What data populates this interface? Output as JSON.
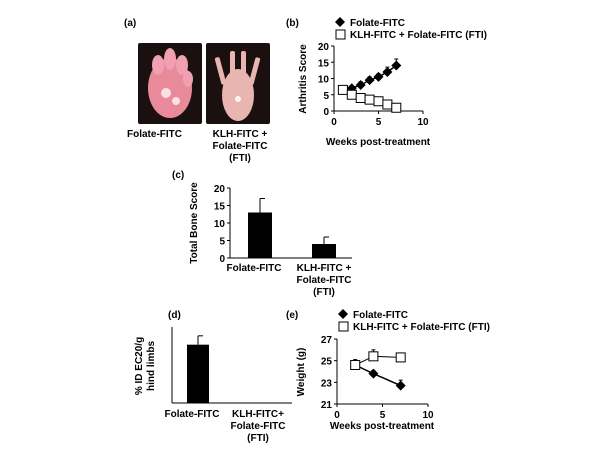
{
  "panels": {
    "a": {
      "label": "(a)",
      "photo_left_caption": "Folate-FITC",
      "photo_right_caption": [
        "KLH-FITC +",
        "Folate-FITC",
        "(FTI)"
      ]
    },
    "b": {
      "label": "(b)"
    },
    "c": {
      "label": "(c)"
    },
    "d": {
      "label": "(d)"
    },
    "e": {
      "label": "(e)"
    }
  },
  "colors": {
    "series_filled": "#000000",
    "series_open": "#ffffff",
    "paw_bg": "#1a1010",
    "paw_left": "#e88a9a",
    "paw_right": "#e8b5b0"
  },
  "chart_data": [
    {
      "id": "b",
      "type": "line",
      "xlabel": "Weeks post-treatment",
      "ylabel": "Arthritis Score",
      "xlim": [
        0,
        10
      ],
      "ylim": [
        0,
        20
      ],
      "xticks": [
        "0",
        "5",
        "10"
      ],
      "yticks": [
        "0",
        "5",
        "10",
        "15",
        "20"
      ],
      "legend": "top",
      "series": [
        {
          "name": "Folate-FITC",
          "marker": "diamond",
          "x": [
            1,
            2,
            3,
            4,
            5,
            6,
            7
          ],
          "y": [
            6.5,
            7,
            8,
            9.5,
            10.5,
            12,
            14
          ],
          "err": [
            1,
            0.5,
            1,
            1,
            1,
            1.5,
            2
          ]
        },
        {
          "name": "KLH-FITC + Folate-FITC (FTI)",
          "marker": "square",
          "x": [
            1,
            2,
            3,
            4,
            5,
            6,
            7
          ],
          "y": [
            6.5,
            5,
            4,
            3.5,
            3,
            2,
            1
          ],
          "err": [
            1,
            0.5,
            0.5,
            0.5,
            0.5,
            0.5,
            0.3
          ]
        }
      ]
    },
    {
      "id": "c",
      "type": "bar",
      "ylabel": "Total Bone Score",
      "ylim": [
        0,
        20
      ],
      "yticks": [
        "0",
        "5",
        "10",
        "15",
        "20"
      ],
      "categories": [
        "Folate-FITC",
        "KLH-FITC +\nFolate-FITC\n(FTI)"
      ],
      "values": [
        13,
        4
      ],
      "err": [
        4,
        2
      ]
    },
    {
      "id": "d",
      "type": "bar",
      "ylabel": "% ID EC20/g hind limbs",
      "categories": [
        "Folate-FITC",
        "KLH-FITC+\nFolate-FITC\n(FTI)"
      ],
      "values": [
        3.3,
        0
      ],
      "err": [
        0.5,
        0
      ]
    },
    {
      "id": "e",
      "type": "line",
      "xlabel": "Weeks post-treatment",
      "ylabel": "Weight (g)",
      "xlim": [
        0,
        10
      ],
      "ylim": [
        21,
        27
      ],
      "xticks": [
        "0",
        "5",
        "10"
      ],
      "yticks": [
        "21",
        "23",
        "25",
        "27"
      ],
      "legend": "top",
      "series": [
        {
          "name": "Folate-FITC",
          "marker": "diamond",
          "x": [
            2,
            4,
            7
          ],
          "y": [
            24.6,
            23.8,
            22.7
          ],
          "err": [
            0.3,
            0.3,
            0.5
          ]
        },
        {
          "name": "KLH-FITC + Folate-FITC (FTI)",
          "marker": "square",
          "x": [
            2,
            4,
            7
          ],
          "y": [
            24.6,
            25.4,
            25.3
          ],
          "err": [
            0.5,
            0.6,
            0.4
          ]
        }
      ]
    }
  ]
}
